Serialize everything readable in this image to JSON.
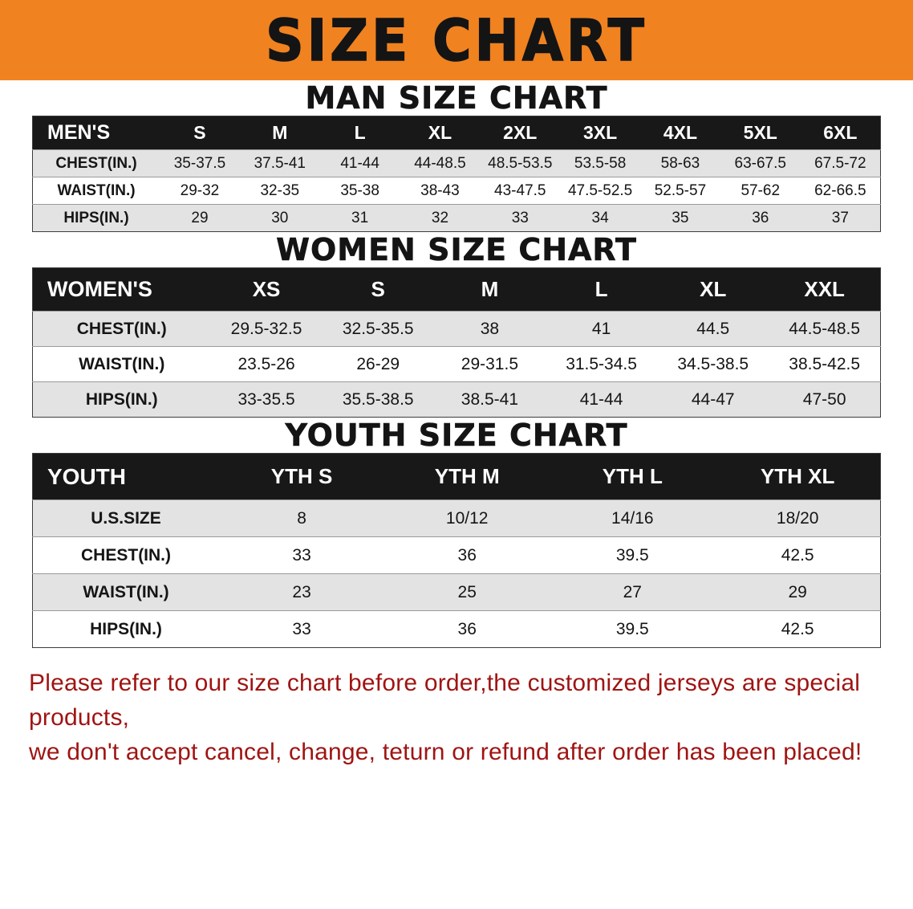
{
  "banner": {
    "title": "SIZE CHART"
  },
  "colors": {
    "banner_orange": "#f08220",
    "table_header_black": "#181818",
    "row_alt_gray": "#e3e3e3",
    "disclaimer_red": "#9f1412"
  },
  "sections": [
    {
      "heading": "MAN SIZE CHART",
      "table": {
        "header": [
          "MEN'S",
          "S",
          "M",
          "L",
          "XL",
          "2XL",
          "3XL",
          "4XL",
          "5XL",
          "6XL"
        ],
        "rows": [
          {
            "label": "CHEST(IN.)",
            "values": [
              "35-37.5",
              "37.5-41",
              "41-44",
              "44-48.5",
              "48.5-53.5",
              "53.5-58",
              "58-63",
              "63-67.5",
              "67.5-72"
            ]
          },
          {
            "label": "WAIST(IN.)",
            "values": [
              "29-32",
              "32-35",
              "35-38",
              "38-43",
              "43-47.5",
              "47.5-52.5",
              "52.5-57",
              "57-62",
              "62-66.5"
            ]
          },
          {
            "label": "HIPS(IN.)",
            "values": [
              "29",
              "30",
              "31",
              "32",
              "33",
              "34",
              "35",
              "36",
              "37"
            ]
          }
        ]
      }
    },
    {
      "heading": "WOMEN SIZE CHART",
      "table": {
        "header": [
          "WOMEN'S",
          "XS",
          "S",
          "M",
          "L",
          "XL",
          "XXL"
        ],
        "rows": [
          {
            "label": "CHEST(IN.)",
            "values": [
              "29.5-32.5",
              "32.5-35.5",
              "38",
              "41",
              "44.5",
              "44.5-48.5"
            ]
          },
          {
            "label": "WAIST(IN.)",
            "values": [
              "23.5-26",
              "26-29",
              "29-31.5",
              "31.5-34.5",
              "34.5-38.5",
              "38.5-42.5"
            ]
          },
          {
            "label": "HIPS(IN.)",
            "values": [
              "33-35.5",
              "35.5-38.5",
              "38.5-41",
              "41-44",
              "44-47",
              "47-50"
            ]
          }
        ]
      }
    },
    {
      "heading": "YOUTH SIZE CHART",
      "table": {
        "header": [
          "YOUTH",
          "YTH S",
          "YTH M",
          "YTH L",
          "YTH XL"
        ],
        "rows": [
          {
            "label": "U.S.SIZE",
            "values": [
              "8",
              "10/12",
              "14/16",
              "18/20"
            ]
          },
          {
            "label": "CHEST(IN.)",
            "values": [
              "33",
              "36",
              "39.5",
              "42.5"
            ]
          },
          {
            "label": "WAIST(IN.)",
            "values": [
              "23",
              "25",
              "27",
              "29"
            ]
          },
          {
            "label": "HIPS(IN.)",
            "values": [
              "33",
              "36",
              "39.5",
              "42.5"
            ]
          }
        ]
      }
    }
  ],
  "disclaimer": {
    "color": "#9f1412",
    "lines": [
      "Please refer to our size chart before order,the customized jerseys are special products,",
      "we don't accept cancel, change, teturn or refund after order has been placed!"
    ]
  }
}
